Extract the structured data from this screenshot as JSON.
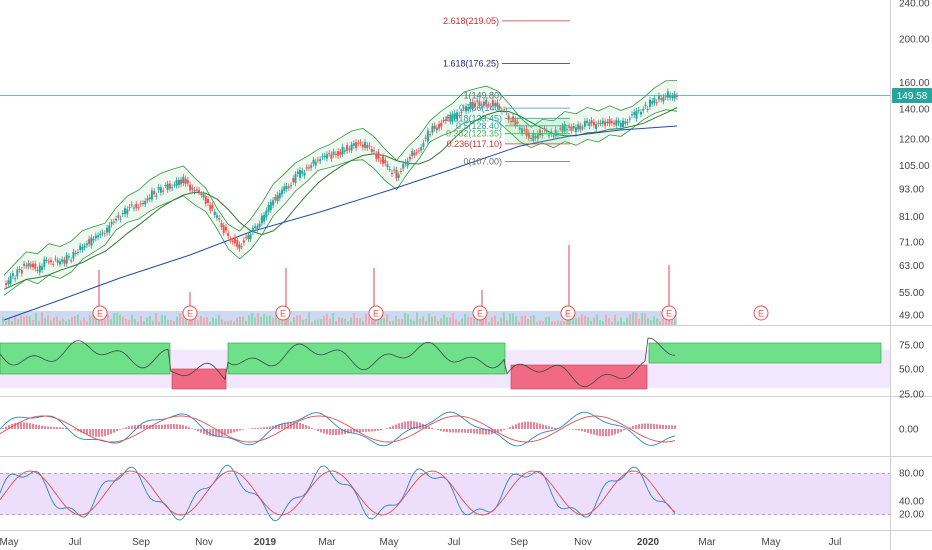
{
  "chart_data": {
    "type": "candlestick",
    "price_label": "149.58",
    "colors": {
      "up": "#26a69a",
      "down": "#ef5350",
      "ma_short": "#2e7d32",
      "ma_long": "#1e4fa8",
      "bollinger": "#2e9b3e",
      "fib_up": "#1e2a78",
      "fib_top": "#d42a2a",
      "price_line": "#26a69a",
      "rsi_bull": "#6fe08a",
      "rsi_bear": "#f06a85",
      "panel_bg": "#e9d7fb",
      "macd_hist": "#f06a85",
      "macd_line": "#2b87c9",
      "signal_line": "#e35050"
    },
    "y_ticks": [
      {
        "label": "240.00",
        "value": 240
      },
      {
        "label": "200.00",
        "value": 200
      },
      {
        "label": "160.00",
        "value": 160
      },
      {
        "label": "140.00",
        "value": 140
      },
      {
        "label": "120.00",
        "value": 120
      },
      {
        "label": "105.00",
        "value": 105
      },
      {
        "label": "93.00",
        "value": 93
      },
      {
        "label": "81.00",
        "value": 81
      },
      {
        "label": "71.00",
        "value": 71
      },
      {
        "label": "63.00",
        "value": 63
      },
      {
        "label": "55.00",
        "value": 55
      },
      {
        "label": "49.00",
        "value": 49
      }
    ],
    "x_ticks": [
      "May",
      "Jul",
      "Sep",
      "Nov",
      "2019",
      "Mar",
      "May",
      "Jul",
      "Sep",
      "Nov",
      "2020",
      "Mar",
      "May",
      "Jul"
    ],
    "fib_levels": [
      {
        "label": "2.618(219.05)",
        "value": 219.05
      },
      {
        "label": "1.618(176.25)",
        "value": 176.25
      },
      {
        "label": "1(149.80)",
        "value": 149.8
      },
      {
        "label": "0.786(140.",
        "value": 140.5
      },
      {
        "label": "0.618(133.45)",
        "value": 133.45
      },
      {
        "label": "0.5(128.40)",
        "value": 128.4
      },
      {
        "label": "0.382(123.35)",
        "value": 123.35
      },
      {
        "label": "0.236(117.10)",
        "value": 117.1
      },
      {
        "label": "0(107.00)",
        "value": 107.0
      }
    ],
    "earnings_markers": [
      "E",
      "E",
      "E",
      "E",
      "E",
      "E",
      "E",
      "E"
    ],
    "rsi_ticks": [
      "75.00",
      "50.00",
      "25.00"
    ],
    "macd_ticks": [
      "0.00"
    ],
    "stoch_ticks": [
      "80.00",
      "40.00",
      "20.00"
    ],
    "price_series": [
      57,
      60,
      63,
      62,
      65,
      64,
      66,
      70,
      72,
      74,
      80,
      84,
      86,
      90,
      93,
      95,
      97,
      92,
      88,
      80,
      73,
      70,
      74,
      80,
      88,
      93,
      99,
      103,
      108,
      110,
      113,
      116,
      117,
      112,
      105,
      100,
      108,
      115,
      125,
      130,
      134,
      141,
      143,
      145,
      142,
      134,
      126,
      121,
      125,
      123,
      128,
      126,
      130,
      128,
      132,
      130,
      134,
      140,
      146,
      150,
      149.58
    ]
  }
}
